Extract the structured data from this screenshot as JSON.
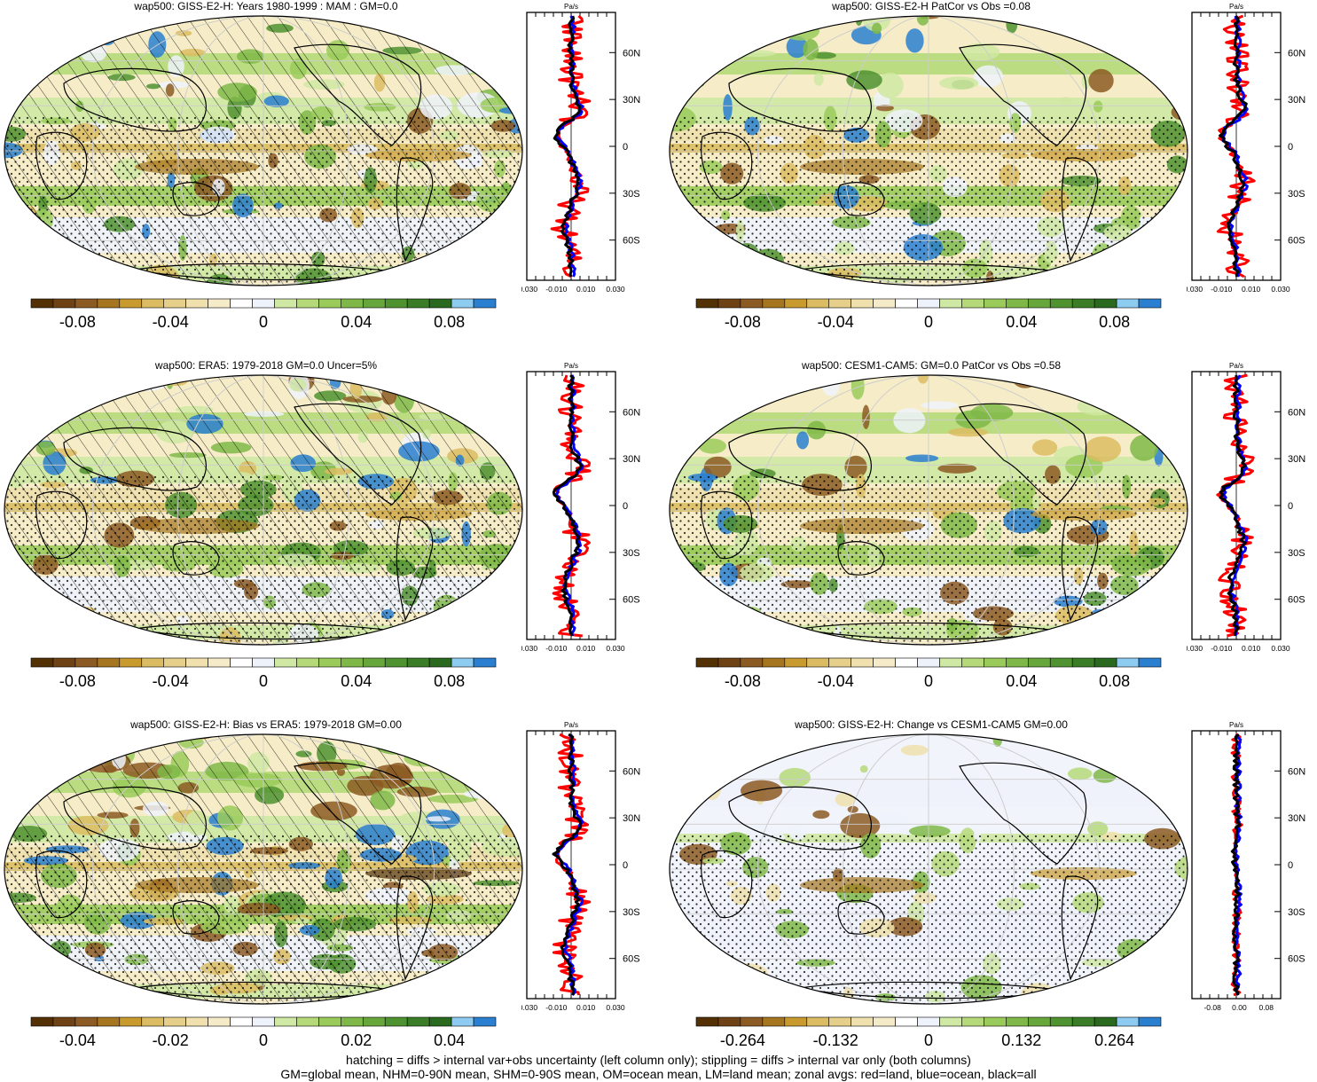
{
  "panels": [
    {
      "title": "wap500: GISS-E2-H: Years 1980-1999 : MAM : GM=0.0",
      "colorbar": {
        "tick_labels": [
          "-0.08",
          "-0.04",
          "0",
          "0.04",
          "0.08"
        ],
        "tick_values": [
          -0.08,
          -0.04,
          0,
          0.04,
          0.08
        ],
        "range": [
          -0.1,
          0.1
        ]
      },
      "zonal_xticks": [
        "-0.030",
        "-0.010",
        "0.010",
        "0.030"
      ],
      "hatched": true
    },
    {
      "title": "wap500: GISS-E2-H PatCor vs Obs =0.08",
      "colorbar": {
        "tick_labels": [
          "-0.08",
          "-0.04",
          "0",
          "0.04",
          "0.08"
        ],
        "tick_values": [
          -0.08,
          -0.04,
          0,
          0.04,
          0.08
        ],
        "range": [
          -0.1,
          0.1
        ]
      },
      "zonal_xticks": [
        "-0.030",
        "-0.010",
        "0.010",
        "0.030"
      ],
      "hatched": false
    },
    {
      "title": "wap500: ERA5: 1979-2018 GM=0.0 Uncer=5%",
      "colorbar": {
        "tick_labels": [
          "-0.08",
          "-0.04",
          "0",
          "0.04",
          "0.08"
        ],
        "tick_values": [
          -0.08,
          -0.04,
          0,
          0.04,
          0.08
        ],
        "range": [
          -0.1,
          0.1
        ]
      },
      "zonal_xticks": [
        "-0.030",
        "-0.010",
        "0.010",
        "0.030"
      ],
      "hatched": true
    },
    {
      "title": "wap500: CESM1-CAM5: GM=0.0 PatCor vs Obs =0.58",
      "colorbar": {
        "tick_labels": [
          "-0.08",
          "-0.04",
          "0",
          "0.04",
          "0.08"
        ],
        "tick_values": [
          -0.08,
          -0.04,
          0,
          0.04,
          0.08
        ],
        "range": [
          -0.1,
          0.1
        ]
      },
      "zonal_xticks": [
        "-0.030",
        "-0.010",
        "0.010",
        "0.030"
      ],
      "hatched": false
    },
    {
      "title": "wap500: GISS-E2-H: Bias vs ERA5: 1979-2018 GM=0.00",
      "colorbar": {
        "tick_labels": [
          "-0.04",
          "-0.02",
          "0",
          "0.02",
          "0.04"
        ],
        "tick_values": [
          -0.04,
          -0.02,
          0,
          0.02,
          0.04
        ],
        "range": [
          -0.05,
          0.05
        ]
      },
      "zonal_xticks": [
        "-0.030",
        "-0.010",
        "0.010",
        "0.030"
      ],
      "hatched": true
    },
    {
      "title": "wap500: GISS-E2-H: Change vs CESM1-CAM5 GM=0.00",
      "colorbar": {
        "tick_labels": [
          "-0.264",
          "-0.132",
          "0",
          "0.132",
          "0.264"
        ],
        "tick_values": [
          -0.264,
          -0.132,
          0,
          0.132,
          0.264
        ],
        "range": [
          -0.33,
          0.33
        ]
      },
      "zonal_xticks": [
        "-0.08",
        "0.00",
        "0.08"
      ],
      "hatched": false
    }
  ],
  "zonal_units": "Pa/s",
  "zonal_lat_labels": [
    "60N",
    "30N",
    "0",
    "30S",
    "60S"
  ],
  "colorbar_colors": [
    "#543005",
    "#6e4215",
    "#8c5a23",
    "#a5751f",
    "#c99a2e",
    "#dcbc62",
    "#e6cf8a",
    "#efe0ad",
    "#f5ebc9",
    "#ffffff",
    "#eef2fb",
    "#cfe8a3",
    "#b5d979",
    "#9acb5a",
    "#7fb848",
    "#66a63b",
    "#4f9230",
    "#3b7d27",
    "#2a6a1f",
    "#8ecbf0",
    "#2a7fd0"
  ],
  "zonal_line_colors": {
    "land": "#ff0000",
    "ocean": "#0000ff",
    "all": "#000000"
  },
  "footer": {
    "line1": "hatching = diffs > internal var+obs uncertainty (left column only); stippling = diffs > internal var only (both columns)",
    "line2": "GM=global mean, NHM=0-90N mean, SHM=0-90S mean, OM=ocean mean, LM=land mean; zonal avgs: red=land, blue=ocean, black=all"
  },
  "chart_data": [
    {
      "type": "heatmap",
      "title": "wap500: GISS-E2-H: Years 1980-1999 : MAM : GM=0.0",
      "colorbar_ticks": [
        -0.08,
        -0.04,
        0,
        0.04,
        0.08
      ],
      "zonal_xlim": [
        -0.03,
        0.03
      ],
      "zonal_ticks": [
        -0.03,
        -0.01,
        0.01,
        0.03
      ],
      "lat_ticks": [
        60,
        30,
        0,
        -30,
        -60
      ]
    },
    {
      "type": "heatmap",
      "title": "wap500: GISS-E2-H PatCor vs Obs =0.08",
      "colorbar_ticks": [
        -0.08,
        -0.04,
        0,
        0.04,
        0.08
      ],
      "zonal_xlim": [
        -0.03,
        0.03
      ],
      "zonal_ticks": [
        -0.03,
        -0.01,
        0.01,
        0.03
      ],
      "lat_ticks": [
        60,
        30,
        0,
        -30,
        -60
      ]
    },
    {
      "type": "heatmap",
      "title": "wap500: ERA5: 1979-2018 GM=0.0 Uncer=5%",
      "colorbar_ticks": [
        -0.08,
        -0.04,
        0,
        0.04,
        0.08
      ],
      "zonal_xlim": [
        -0.03,
        0.03
      ],
      "zonal_ticks": [
        -0.03,
        -0.01,
        0.01,
        0.03
      ],
      "lat_ticks": [
        60,
        30,
        0,
        -30,
        -60
      ]
    },
    {
      "type": "heatmap",
      "title": "wap500: CESM1-CAM5: GM=0.0 PatCor vs Obs =0.58",
      "colorbar_ticks": [
        -0.08,
        -0.04,
        0,
        0.04,
        0.08
      ],
      "zonal_xlim": [
        -0.03,
        0.03
      ],
      "zonal_ticks": [
        -0.03,
        -0.01,
        0.01,
        0.03
      ],
      "lat_ticks": [
        60,
        30,
        0,
        -30,
        -60
      ]
    },
    {
      "type": "heatmap",
      "title": "wap500: GISS-E2-H: Bias vs ERA5: 1979-2018 GM=0.00",
      "colorbar_ticks": [
        -0.04,
        -0.02,
        0,
        0.02,
        0.04
      ],
      "zonal_xlim": [
        -0.03,
        0.03
      ],
      "zonal_ticks": [
        -0.03,
        -0.01,
        0.01,
        0.03
      ],
      "lat_ticks": [
        60,
        30,
        0,
        -30,
        -60
      ]
    },
    {
      "type": "heatmap",
      "title": "wap500: GISS-E2-H: Change vs CESM1-CAM5 GM=0.00",
      "colorbar_ticks": [
        -0.264,
        -0.132,
        0,
        0.132,
        0.264
      ],
      "zonal_xlim": [
        -0.1,
        0.1
      ],
      "zonal_ticks": [
        -0.08,
        0.0,
        0.08
      ],
      "lat_ticks": [
        60,
        30,
        0,
        -30,
        -60
      ]
    }
  ]
}
